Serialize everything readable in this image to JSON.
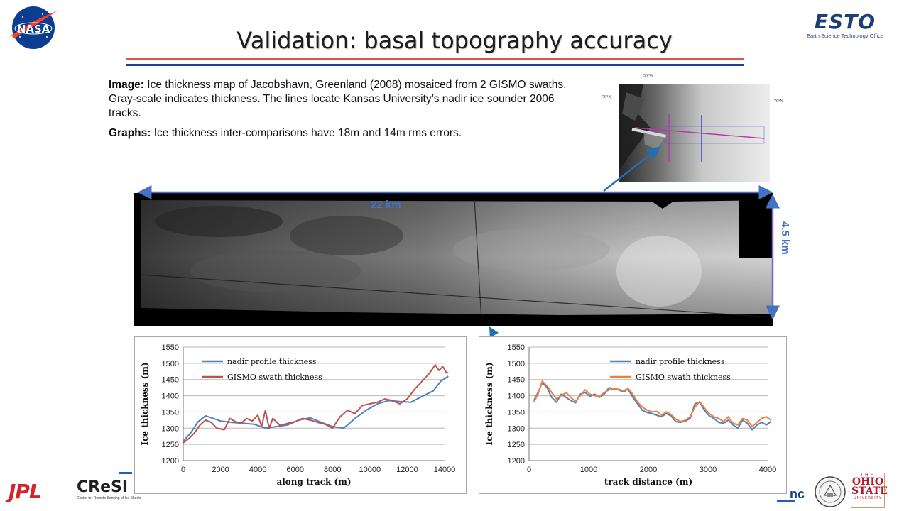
{
  "header": {
    "nasa_logo_text": "NASA",
    "esto_logo_text": "ESTO",
    "esto_subtitle": "Earth Science Technology Office",
    "title": "Validation: basal topography accuracy"
  },
  "description": {
    "image_label": "Image:",
    "image_text": " Ice thickness map of Jacobshavn, Greenland (2008) mosaiced from 2 GISMO swaths. Gray-scale indicates thickness. The lines locate Kansas University’s nadir ice sounder 2006 tracks.",
    "graphs_label": "Graphs:",
    "graphs_text": " Ice thickness inter-comparisons have 18m and 14m rms errors."
  },
  "inset_map": {
    "lon_label": "50°W",
    "lat_label_left": "70°N",
    "lat_label_right": "70°N"
  },
  "mosaic": {
    "width_label": "22 km",
    "height_label": "4.5 km"
  },
  "colors": {
    "nadir": "#4f81bd",
    "gismo_left": "#c0504d",
    "gismo_right": "#f07f3c",
    "dimension": "#4472c4"
  },
  "chart_data": [
    {
      "type": "line",
      "xlabel": "along track (m)",
      "ylabel": "Ice thickness (m)",
      "xlim": [
        0,
        14000
      ],
      "ylim": [
        1200,
        1550
      ],
      "xticks": [
        0,
        2000,
        4000,
        6000,
        8000,
        10000,
        12000,
        14000
      ],
      "yticks": [
        1200,
        1250,
        1300,
        1350,
        1400,
        1450,
        1500,
        1550
      ],
      "legend_position": "top-left",
      "series": [
        {
          "name": "nadir profile thickness",
          "x": [
            0,
            400,
            800,
            1200,
            1600,
            2000,
            2600,
            3200,
            3800,
            4400,
            5000,
            5600,
            6200,
            6800,
            7400,
            8000,
            8600,
            9200,
            9800,
            10400,
            11000,
            11600,
            12200,
            12800,
            13400,
            13800,
            14200
          ],
          "y": [
            1260,
            1285,
            1320,
            1338,
            1330,
            1322,
            1318,
            1315,
            1312,
            1300,
            1305,
            1310,
            1325,
            1332,
            1318,
            1305,
            1300,
            1330,
            1355,
            1375,
            1385,
            1382,
            1380,
            1398,
            1415,
            1445,
            1460
          ]
        },
        {
          "name": "GISMO swath thickness",
          "x": [
            0,
            300,
            600,
            900,
            1200,
            1500,
            1800,
            2200,
            2500,
            2800,
            3100,
            3400,
            3700,
            4000,
            4200,
            4400,
            4600,
            4800,
            5200,
            5600,
            6000,
            6400,
            6800,
            7200,
            7600,
            8000,
            8400,
            8800,
            9200,
            9600,
            10000,
            10400,
            10800,
            11200,
            11600,
            12000,
            12400,
            12800,
            13200,
            13500,
            13700,
            13900,
            14100,
            14200
          ],
          "y": [
            1255,
            1268,
            1285,
            1310,
            1325,
            1318,
            1300,
            1295,
            1330,
            1320,
            1315,
            1330,
            1322,
            1340,
            1305,
            1355,
            1300,
            1330,
            1308,
            1315,
            1320,
            1330,
            1325,
            1318,
            1312,
            1300,
            1335,
            1355,
            1345,
            1370,
            1375,
            1380,
            1390,
            1385,
            1375,
            1390,
            1420,
            1445,
            1470,
            1495,
            1478,
            1490,
            1472,
            1470
          ]
        }
      ]
    },
    {
      "type": "line",
      "xlabel": "track distance (m)",
      "ylabel": "Ice thickness (m)",
      "xlim": [
        0,
        4000
      ],
      "ylim": [
        1200,
        1550
      ],
      "xticks": [
        0,
        1000,
        2000,
        3000,
        4000
      ],
      "yticks": [
        1200,
        1250,
        1300,
        1350,
        1400,
        1450,
        1500,
        1550
      ],
      "legend_position": "top-right",
      "series": [
        {
          "name": "nadir profile thickness",
          "x": [
            80,
            150,
            220,
            300,
            380,
            460,
            540,
            620,
            700,
            780,
            860,
            940,
            1020,
            1100,
            1180,
            1260,
            1340,
            1420,
            1500,
            1580,
            1660,
            1740,
            1820,
            1900,
            1980,
            2060,
            2140,
            2220,
            2300,
            2380,
            2460,
            2540,
            2620,
            2700,
            2780,
            2860,
            2940,
            3020,
            3100,
            3180,
            3260,
            3340,
            3420,
            3500,
            3580,
            3660,
            3740,
            3820,
            3900,
            3980,
            4050
          ],
          "y": [
            1385,
            1410,
            1440,
            1425,
            1395,
            1380,
            1405,
            1395,
            1385,
            1378,
            1405,
            1410,
            1398,
            1405,
            1395,
            1405,
            1425,
            1420,
            1418,
            1412,
            1420,
            1395,
            1375,
            1355,
            1348,
            1345,
            1340,
            1335,
            1345,
            1338,
            1320,
            1318,
            1322,
            1330,
            1375,
            1380,
            1355,
            1338,
            1330,
            1318,
            1315,
            1325,
            1310,
            1300,
            1325,
            1315,
            1295,
            1310,
            1318,
            1310,
            1320
          ]
        },
        {
          "name": "GISMO swath thickness",
          "x": [
            80,
            150,
            220,
            300,
            380,
            460,
            540,
            620,
            700,
            780,
            860,
            940,
            1020,
            1100,
            1180,
            1260,
            1340,
            1420,
            1500,
            1580,
            1660,
            1740,
            1820,
            1900,
            1980,
            2060,
            2140,
            2220,
            2300,
            2380,
            2460,
            2540,
            2620,
            2700,
            2780,
            2860,
            2940,
            3020,
            3100,
            3180,
            3260,
            3340,
            3420,
            3500,
            3580,
            3660,
            3740,
            3820,
            3900,
            3980,
            4050
          ],
          "y": [
            1380,
            1405,
            1445,
            1430,
            1410,
            1390,
            1400,
            1410,
            1395,
            1382,
            1400,
            1418,
            1405,
            1400,
            1398,
            1410,
            1418,
            1422,
            1420,
            1415,
            1422,
            1405,
            1380,
            1365,
            1355,
            1350,
            1352,
            1340,
            1350,
            1342,
            1328,
            1320,
            1325,
            1335,
            1365,
            1382,
            1362,
            1345,
            1335,
            1330,
            1320,
            1335,
            1315,
            1310,
            1330,
            1325,
            1305,
            1318,
            1330,
            1335,
            1325
          ]
        }
      ]
    }
  ],
  "footer": {
    "jpl": "JPL",
    "cresis": "CReSI",
    "cresis_sub": "Center for Remote Sensing of Ice Sheets",
    "unc": "nc",
    "osu_the": "THE",
    "osu_line1": "OHIO",
    "osu_line2": "STATE",
    "osu_univ": "UNIVERSITY"
  }
}
